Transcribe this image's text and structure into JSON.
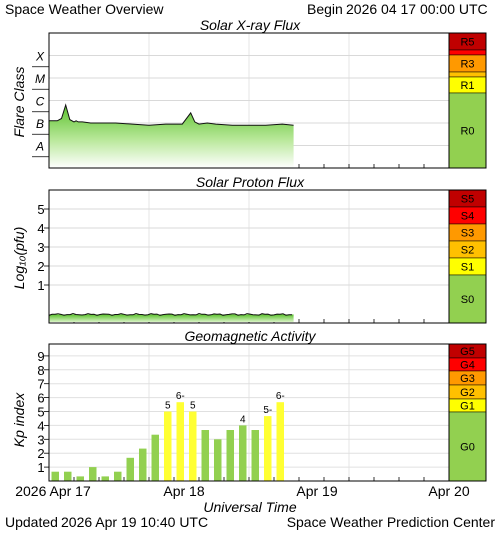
{
  "header": {
    "title": "Space Weather Overview",
    "begin_label": "Begin",
    "begin_time": "2026 04 17 00:00 UTC"
  },
  "footer": {
    "updated_label": "Updated",
    "updated_time": "2026 Apr 19 10:40 UTC",
    "source": "Space Weather Prediction Center"
  },
  "colors": {
    "plot_fill_top": "#1a1a1a",
    "plot_fill_gradient_top": "#6fcf3a",
    "plot_fill_gradient_bottom": "#ffffff",
    "kp_green": "#92d050",
    "kp_yellow": "#ffff33",
    "scale_green": "#92d050",
    "scale_yellow": "#ffff00",
    "scale_gold": "#ffc000",
    "scale_orange": "#ff9900",
    "scale_red": "#ff0000",
    "scale_darkred": "#c00000"
  },
  "chart_data": [
    {
      "type": "area",
      "title": "Solar X-ray Flux",
      "ylabel": "Flare Class",
      "y_classes": [
        "X",
        "M",
        "C",
        "B",
        "A"
      ],
      "scale_levels": [
        {
          "label": "R5",
          "color": "#c00000"
        },
        {
          "label": "R4",
          "color": "#ff0000"
        },
        {
          "label": "R3",
          "color": "#ff9900"
        },
        {
          "label": "R2",
          "color": "#ffc000"
        },
        {
          "label": "R1",
          "color": "#ffff00"
        },
        {
          "label": "R0",
          "color": "#92d050"
        }
      ],
      "x_range_hours": [
        0,
        96
      ],
      "data_end_hour": 58.7,
      "log_flux_x": [
        0,
        2,
        3,
        4,
        5,
        6,
        6.5,
        7,
        8,
        10,
        12,
        16,
        20,
        24,
        28,
        32,
        34,
        35,
        36,
        38,
        40,
        44,
        48,
        52,
        56,
        58.7
      ],
      "log_flux_y": [
        -6.9,
        -6.9,
        -6.8,
        -6.2,
        -6.85,
        -6.95,
        -6.9,
        -6.95,
        -6.95,
        -7.0,
        -7.0,
        -7.0,
        -7.05,
        -7.1,
        -7.05,
        -7.05,
        -6.55,
        -6.95,
        -7.05,
        -7.0,
        -7.05,
        -7.1,
        -7.1,
        -7.1,
        -7.05,
        -7.1
      ]
    },
    {
      "type": "area",
      "title": "Solar Proton Flux",
      "ylabel": "Log₁₀(pfu)",
      "yticks": [
        "5",
        "4",
        "3",
        "2",
        "1"
      ],
      "scale_levels": [
        {
          "label": "S5",
          "color": "#c00000"
        },
        {
          "label": "S4",
          "color": "#ff0000"
        },
        {
          "label": "S3",
          "color": "#ff9900"
        },
        {
          "label": "S2",
          "color": "#ffc000"
        },
        {
          "label": "S1",
          "color": "#ffff00"
        },
        {
          "label": "S0",
          "color": "#92d050"
        }
      ],
      "x_range_hours": [
        0,
        96
      ],
      "data_end_hour": 58.7,
      "log_pfu_level": -0.55
    },
    {
      "type": "bar",
      "title": "Geomagnetic Activity",
      "ylabel": "Kp index",
      "xlabel": "Universal Time",
      "ylim": [
        0,
        9
      ],
      "yticks": [
        "9",
        "8",
        "7",
        "6",
        "5",
        "4",
        "3",
        "2",
        "1"
      ],
      "x_tick_labels": [
        "2026 Apr 17",
        "Apr 18",
        "Apr 19",
        "Apr 20"
      ],
      "scale_levels": [
        {
          "label": "G5",
          "color": "#c00000"
        },
        {
          "label": "G4",
          "color": "#ff0000"
        },
        {
          "label": "G3",
          "color": "#ff9900"
        },
        {
          "label": "G2",
          "color": "#ffc000"
        },
        {
          "label": "G1",
          "color": "#ffff00"
        },
        {
          "label": "G0",
          "color": "#92d050"
        }
      ],
      "kp_values": [
        0.67,
        0.67,
        0.33,
        1.0,
        0.33,
        0.67,
        1.67,
        2.33,
        3.33,
        5.0,
        5.67,
        5.0,
        3.67,
        3.0,
        3.67,
        4.0,
        3.67,
        4.67,
        5.67
      ],
      "kp_bar_labels": [
        "",
        "",
        "",
        "",
        "",
        "",
        "",
        "",
        "",
        "5",
        "6-",
        "5",
        "",
        "",
        "",
        "4",
        "",
        "5-",
        "6-"
      ]
    }
  ]
}
